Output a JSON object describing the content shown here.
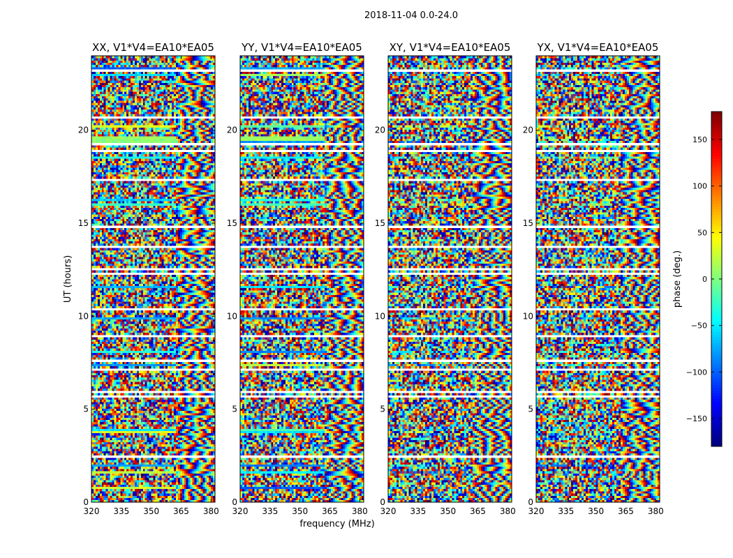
{
  "figure": {
    "suptitle": "2018-11-04 0.0-24.0",
    "xlabel": "frequency (MHz)",
    "ylabel": "UT (hours)"
  },
  "chart_data": {
    "type": "heatmap",
    "xlim": [
      320,
      382
    ],
    "ylim": [
      0,
      24
    ],
    "xticks": [
      320,
      335,
      350,
      365,
      380
    ],
    "yticks": [
      0,
      5,
      10,
      15,
      20
    ],
    "panels": [
      {
        "title": "XX, V1*V4=EA10*EA05",
        "pol": "XX"
      },
      {
        "title": "YY, V1*V4=EA10*EA05",
        "pol": "YY"
      },
      {
        "title": "XY, V1*V4=EA10*EA05",
        "pol": "XY"
      },
      {
        "title": "YX, V1*V4=EA10*EA05",
        "pol": "YX"
      }
    ],
    "colorbar": {
      "label": "phase (deg.)",
      "range": [
        -180,
        180
      ],
      "ticks": [
        150,
        100,
        50,
        0,
        -50,
        -100,
        -150
      ],
      "tick_labels": [
        "150",
        "100",
        "50",
        "0",
        "−50",
        "−100",
        "−150"
      ],
      "colormap": "jet"
    }
  },
  "colors": {
    "axis": "#000000",
    "background": "#ffffff",
    "gap": "#ffffff"
  }
}
